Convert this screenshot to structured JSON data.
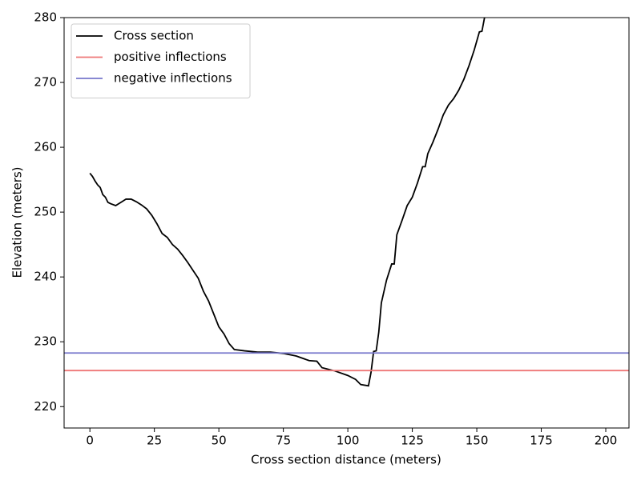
{
  "chart_data": {
    "type": "line",
    "xlabel": "Cross section distance (meters)",
    "ylabel": "Elevation (meters)",
    "xlim": [
      -10,
      209
    ],
    "ylim": [
      216.7,
      280
    ],
    "xticks": [
      0,
      25,
      50,
      75,
      100,
      125,
      150,
      175,
      200
    ],
    "yticks": [
      220,
      230,
      240,
      250,
      260,
      270,
      280
    ],
    "legend": "upper left",
    "series": [
      {
        "name": "Cross section",
        "color": "#000000",
        "x": [
          0,
          1,
          2,
          3,
          4,
          5,
          6,
          7,
          8,
          10,
          12,
          14,
          16,
          18,
          20,
          22,
          24,
          26,
          28,
          30,
          32,
          34,
          36,
          38,
          40,
          42,
          44,
          46,
          48,
          50,
          52,
          54,
          56,
          60,
          65,
          70,
          75,
          80,
          85,
          88,
          90,
          95,
          100,
          103,
          105,
          108,
          109,
          110,
          111,
          112,
          113,
          115,
          117,
          118,
          119,
          121,
          123,
          125,
          127,
          129,
          130,
          131,
          133,
          135,
          137,
          139,
          141,
          143,
          145,
          147,
          149,
          151,
          152,
          153,
          154
        ],
        "values": [
          256,
          255.5,
          254.8,
          254.2,
          253.8,
          252.7,
          252.3,
          251.5,
          251.3,
          251.0,
          251.5,
          252.0,
          252.0,
          251.6,
          251.1,
          250.5,
          249.5,
          248.2,
          246.7,
          246.1,
          245.0,
          244.3,
          243.3,
          242.2,
          241.0,
          239.8,
          237.8,
          236.3,
          234.3,
          232.3,
          231.2,
          229.7,
          228.8,
          228.6,
          228.4,
          228.4,
          228.2,
          227.8,
          227.1,
          227.0,
          226.0,
          225.5,
          224.8,
          224.2,
          223.4,
          223.2,
          225.3,
          228.5,
          228.6,
          231.5,
          236.0,
          239.5,
          242.0,
          242.0,
          246.5,
          248.7,
          251.0,
          252.3,
          254.5,
          257.0,
          257.0,
          259.0,
          260.8,
          262.8,
          265.0,
          266.5,
          267.5,
          268.8,
          270.5,
          272.6,
          275.0,
          277.8,
          277.9,
          280,
          283
        ]
      }
    ],
    "hlines": [
      {
        "name": "positive inflections",
        "color": "#ee7777",
        "y": 225.56
      },
      {
        "name": "negative inflections",
        "color": "#7777cc",
        "y": 228.27
      }
    ]
  }
}
